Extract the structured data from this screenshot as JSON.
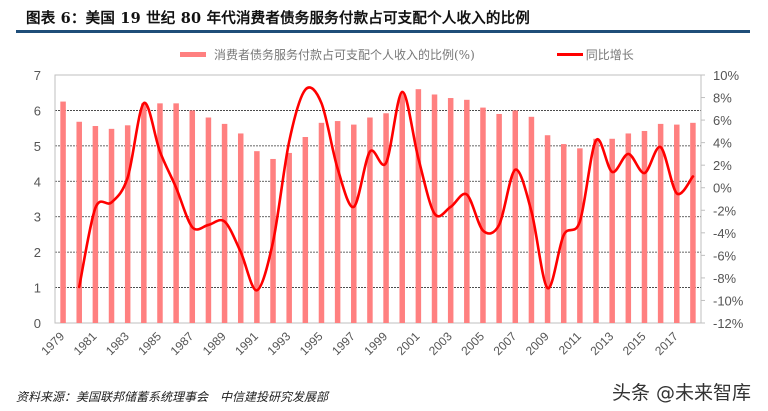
{
  "header": {
    "title": "图表 6：美国 19 世纪 80 年代消费者债务服务付款占可支配个人收入的比例"
  },
  "legend": {
    "bar_label": "消费者债务服务付款占可支配个人收入的比例(%)",
    "line_label": "同比增长"
  },
  "footer": {
    "source": "资料来源：美国联邦储蓄系统理事会　中信建投研究发展部",
    "watermark": "头条 @未来智库"
  },
  "colors": {
    "bar": "#ff8080",
    "line": "#ff0000",
    "title_rule": "#1f4e79",
    "grid": "#333333",
    "axis_text": "#555555"
  },
  "chart_data": {
    "type": "bar+line",
    "title": "美国 19 世纪 80 年代消费者债务服务付款占可支配个人收入的比例",
    "xlabel": "",
    "ylabel_left": "",
    "ylabel_right": "",
    "ylim_left": [
      0,
      7
    ],
    "ylim_right": [
      -12,
      10
    ],
    "left_ticks": [
      "0",
      "1",
      "2",
      "3",
      "4",
      "5",
      "6",
      "7"
    ],
    "right_ticks": [
      "-12%",
      "-10%",
      "-8%",
      "-6%",
      "-4%",
      "-2%",
      "0%",
      "2%",
      "4%",
      "6%",
      "8%",
      "10%"
    ],
    "x_tick_labels": [
      "1979",
      "1981",
      "1983",
      "1985",
      "1987",
      "1989",
      "1991",
      "1993",
      "1995",
      "1997",
      "1999",
      "2001",
      "2003",
      "2005",
      "2007",
      "2009",
      "2011",
      "2013",
      "2015",
      "2017"
    ],
    "grid": true,
    "legend_position": "top",
    "categories": [
      "1979",
      "1980",
      "1981",
      "1982",
      "1983",
      "1984",
      "1985",
      "1986",
      "1987",
      "1988",
      "1989",
      "1990",
      "1991",
      "1992",
      "1993",
      "1994",
      "1995",
      "1996",
      "1997",
      "1998",
      "1999",
      "2000",
      "2001",
      "2002",
      "2003",
      "2004",
      "2005",
      "2006",
      "2007",
      "2008",
      "2009",
      "2010",
      "2011",
      "2012",
      "2013",
      "2014",
      "2015",
      "2016",
      "2017",
      "2018"
    ],
    "series": [
      {
        "name": "消费者债务服务付款占可支配个人收入的比例(%)",
        "type": "bar",
        "axis": "left",
        "values": [
          6.25,
          5.68,
          5.56,
          5.48,
          5.58,
          6.2,
          6.2,
          6.2,
          6.0,
          5.8,
          5.62,
          5.35,
          4.85,
          4.63,
          4.8,
          5.25,
          5.65,
          5.7,
          5.6,
          5.8,
          5.92,
          6.5,
          6.6,
          6.45,
          6.35,
          6.3,
          6.08,
          5.9,
          6.0,
          5.82,
          5.3,
          5.05,
          4.93,
          5.2,
          5.2,
          5.35,
          5.42,
          5.62,
          5.6,
          5.65
        ]
      },
      {
        "name": "同比增长",
        "type": "line",
        "axis": "right",
        "unit": "%",
        "values": [
          null,
          -8.8,
          -1.8,
          -1.3,
          0.9,
          7.5,
          3.2,
          0.0,
          -3.5,
          -3.3,
          -3.0,
          -5.7,
          -9.1,
          -4.8,
          4.1,
          8.7,
          7.5,
          1.7,
          -1.7,
          3.2,
          2.2,
          8.5,
          2.6,
          -2.3,
          -1.7,
          -0.6,
          -3.8,
          -3.3,
          1.6,
          -2.1,
          -8.9,
          -4.2,
          -3.0,
          4.2,
          1.4,
          3.0,
          1.3,
          3.6,
          -0.5,
          1.0
        ]
      }
    ]
  }
}
